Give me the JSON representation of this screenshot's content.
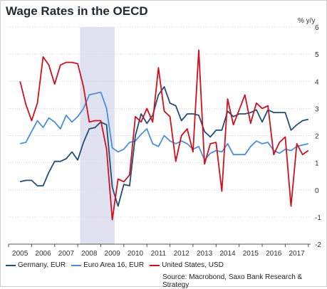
{
  "chart_data": {
    "type": "line",
    "title": "Wage Rates in the OECD",
    "unit_label": "% y/y",
    "source": "Source: Macrobond, Saxo Bank Research & Strategy",
    "ylim": [
      -2,
      6
    ],
    "yticks": [
      -2,
      -1,
      0,
      1,
      2,
      3,
      4,
      5,
      6
    ],
    "xlim": [
      2004.5,
      2017.6
    ],
    "xticks": [
      "2005",
      "2006",
      "2007",
      "2008",
      "2009",
      "2010",
      "2011",
      "2012",
      "2013",
      "2014",
      "2015",
      "2016",
      "2017"
    ],
    "shaded_period": [
      2007.6,
      2009.1
    ],
    "grid": true,
    "legend_position": "bottom",
    "series": [
      {
        "name": "Germany, EUR",
        "color": "#1f4e79",
        "x": [
          2005.0,
          2005.25,
          2005.5,
          2005.75,
          2006.0,
          2006.25,
          2006.5,
          2006.75,
          2007.0,
          2007.25,
          2007.5,
          2007.75,
          2008.0,
          2008.25,
          2008.5,
          2008.75,
          2009.0,
          2009.25,
          2009.5,
          2009.75,
          2010.0,
          2010.25,
          2010.5,
          2010.75,
          2011.0,
          2011.25,
          2011.5,
          2011.75,
          2012.0,
          2012.25,
          2012.5,
          2012.75,
          2013.0,
          2013.25,
          2013.5,
          2013.75,
          2014.0,
          2014.25,
          2014.5,
          2014.75,
          2015.0,
          2015.25,
          2015.5,
          2015.75,
          2016.0,
          2016.25,
          2016.5,
          2016.75,
          2017.0,
          2017.25,
          2017.5
        ],
        "values": [
          0.3,
          0.35,
          0.35,
          0.15,
          0.15,
          0.65,
          1.05,
          1.05,
          1.15,
          1.4,
          1.1,
          1.75,
          2.25,
          2.3,
          2.5,
          2.4,
          0.1,
          -0.6,
          0.2,
          0.15,
          2.0,
          2.8,
          2.45,
          2.75,
          3.5,
          3.8,
          3.2,
          3.1,
          2.55,
          2.8,
          2.8,
          2.75,
          2.15,
          1.95,
          2.2,
          2.2,
          2.9,
          2.7,
          2.8,
          2.8,
          2.85,
          2.95,
          2.5,
          2.95,
          2.85,
          2.85,
          2.85,
          2.2,
          2.4,
          2.55,
          2.6
        ]
      },
      {
        "name": "Euro Area 16, EUR",
        "color": "#4a90d9",
        "x": [
          2005.0,
          2005.25,
          2005.5,
          2005.75,
          2006.0,
          2006.25,
          2006.5,
          2006.75,
          2007.0,
          2007.25,
          2007.5,
          2007.75,
          2008.0,
          2008.25,
          2008.5,
          2008.75,
          2009.0,
          2009.25,
          2009.5,
          2009.75,
          2010.0,
          2010.25,
          2010.5,
          2010.75,
          2011.0,
          2011.25,
          2011.5,
          2011.75,
          2012.0,
          2012.25,
          2012.5,
          2012.75,
          2013.0,
          2013.25,
          2013.5,
          2013.75,
          2014.0,
          2014.25,
          2014.5,
          2014.75,
          2015.0,
          2015.25,
          2015.5,
          2015.75,
          2016.0,
          2016.25,
          2016.5,
          2016.75,
          2017.0,
          2017.25,
          2017.5
        ],
        "values": [
          1.7,
          1.75,
          2.15,
          2.55,
          2.3,
          2.65,
          2.5,
          2.25,
          2.75,
          2.5,
          2.7,
          3.0,
          3.5,
          3.55,
          3.6,
          3.0,
          1.55,
          1.4,
          1.5,
          1.75,
          1.8,
          2.05,
          2.25,
          1.7,
          1.6,
          2.0,
          1.8,
          1.7,
          1.8,
          1.7,
          1.5,
          1.6,
          1.1,
          1.35,
          1.45,
          1.4,
          1.7,
          1.3,
          1.3,
          1.3,
          1.6,
          1.8,
          1.7,
          1.75,
          1.45,
          1.35,
          1.5,
          1.45,
          1.6,
          1.65,
          1.7
        ]
      },
      {
        "name": "United States, USD",
        "color": "#d0101e",
        "x": [
          2005.0,
          2005.25,
          2005.5,
          2005.75,
          2006.0,
          2006.25,
          2006.5,
          2006.75,
          2007.0,
          2007.25,
          2007.5,
          2007.75,
          2008.0,
          2008.25,
          2008.5,
          2008.75,
          2009.0,
          2009.25,
          2009.5,
          2009.75,
          2010.0,
          2010.25,
          2010.5,
          2010.75,
          2011.0,
          2011.25,
          2011.5,
          2011.75,
          2012.0,
          2012.25,
          2012.5,
          2012.75,
          2013.0,
          2013.25,
          2013.5,
          2013.75,
          2014.0,
          2014.25,
          2014.5,
          2014.75,
          2015.0,
          2015.25,
          2015.5,
          2015.75,
          2016.0,
          2016.25,
          2016.5,
          2016.75,
          2017.0,
          2017.25,
          2017.5
        ],
        "values": [
          4.0,
          3.15,
          2.55,
          3.2,
          4.9,
          4.6,
          3.9,
          4.6,
          4.7,
          4.7,
          4.65,
          3.8,
          2.5,
          2.55,
          2.55,
          1.5,
          -1.1,
          0.4,
          0.3,
          0.55,
          2.7,
          2.5,
          3.0,
          2.5,
          4.5,
          2.9,
          2.7,
          1.05,
          2.0,
          2.25,
          1.4,
          5.15,
          0.95,
          1.7,
          1.75,
          -0.05,
          3.35,
          2.4,
          2.95,
          3.5,
          2.45,
          3.2,
          3.0,
          3.1,
          1.3,
          1.75,
          1.95,
          -0.6,
          1.7,
          1.3,
          1.45
        ]
      }
    ]
  }
}
